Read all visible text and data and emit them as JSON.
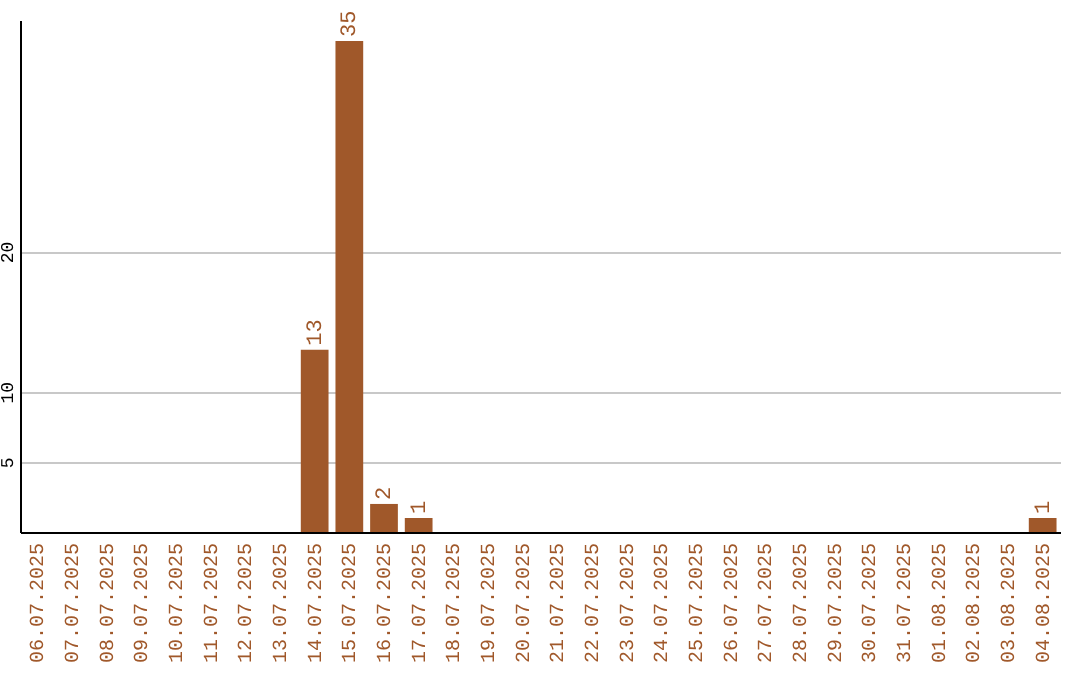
{
  "chart_data": {
    "type": "bar",
    "categories": [
      "06.07.2025",
      "07.07.2025",
      "08.07.2025",
      "09.07.2025",
      "10.07.2025",
      "11.07.2025",
      "12.07.2025",
      "13.07.2025",
      "14.07.2025",
      "15.07.2025",
      "16.07.2025",
      "17.07.2025",
      "18.07.2025",
      "19.07.2025",
      "20.07.2025",
      "21.07.2025",
      "22.07.2025",
      "23.07.2025",
      "24.07.2025",
      "25.07.2025",
      "26.07.2025",
      "27.07.2025",
      "28.07.2025",
      "29.07.2025",
      "30.07.2025",
      "31.07.2025",
      "01.08.2025",
      "02.08.2025",
      "03.08.2025",
      "04.08.2025"
    ],
    "values": [
      0,
      0,
      0,
      0,
      0,
      0,
      0,
      0,
      13,
      35,
      2,
      1,
      0,
      0,
      0,
      0,
      0,
      0,
      0,
      0,
      0,
      0,
      0,
      0,
      0,
      0,
      0,
      0,
      0,
      1
    ],
    "value_labels": [
      null,
      null,
      null,
      null,
      null,
      null,
      null,
      null,
      "13",
      "35",
      "2",
      "1",
      null,
      null,
      null,
      null,
      null,
      null,
      null,
      null,
      null,
      null,
      null,
      null,
      null,
      null,
      null,
      null,
      null,
      "1"
    ],
    "color": "#a0582a",
    "ylim": [
      0,
      36.5
    ],
    "yticks": [
      5,
      10,
      20
    ],
    "grid": "y"
  }
}
